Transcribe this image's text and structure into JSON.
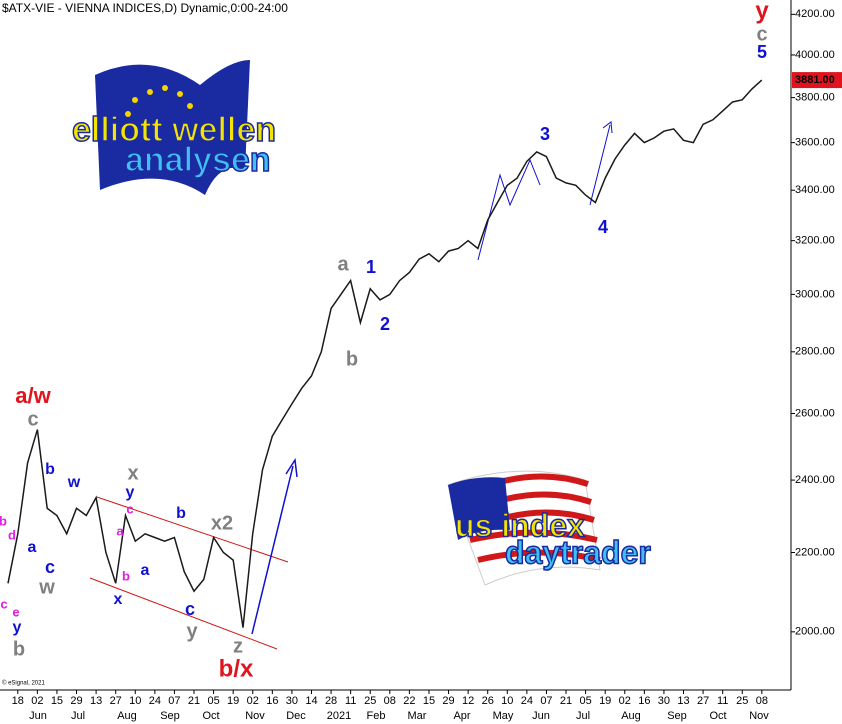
{
  "chart_data": {
    "type": "line",
    "title": "$ATX-VIE - VIENNA INDICES,D) Dynamic,0:00-24:00",
    "copyright": "© eSignal, 2021",
    "log_scale": true,
    "grid": false,
    "color": "#1a1a1a",
    "ylim": [
      1865,
      4273
    ],
    "yticks": [
      {
        "value": 2000,
        "label": "2000.00"
      },
      {
        "value": 2200,
        "label": "2200.00"
      },
      {
        "value": 2400,
        "label": "2400.00"
      },
      {
        "value": 2600,
        "label": "2600.00"
      },
      {
        "value": 2800,
        "label": "2800.00"
      },
      {
        "value": 3000,
        "label": "3000.00"
      },
      {
        "value": 3200,
        "label": "3200.00"
      },
      {
        "value": 3400,
        "label": "3400.00"
      },
      {
        "value": 3600,
        "label": "3600.00"
      },
      {
        "value": 3800,
        "label": "3800.00"
      },
      {
        "value": 4000,
        "label": "4000.00"
      },
      {
        "value": 4200,
        "label": "4200.00"
      }
    ],
    "last_value": {
      "value": 3881,
      "label": "3881.00"
    },
    "categories": [
      null,
      "18",
      null,
      "02",
      null,
      "15",
      null,
      "29",
      null,
      "13",
      null,
      "27",
      null,
      "10",
      null,
      "24",
      null,
      "07",
      null,
      "21",
      null,
      "05",
      null,
      "19",
      null,
      "02",
      null,
      "16",
      null,
      "30",
      null,
      "14",
      null,
      "28",
      null,
      "11",
      null,
      "25",
      null,
      "08",
      null,
      "22",
      null,
      "15",
      null,
      "29",
      null,
      "12",
      null,
      "26",
      null,
      "10",
      null,
      "24",
      null,
      "07",
      null,
      "21",
      null,
      "05",
      null,
      "19",
      null,
      "02",
      null,
      "16",
      null,
      "30",
      null,
      "13",
      null,
      "27",
      null,
      "11",
      null,
      "25",
      null,
      "08"
    ],
    "values": [
      2120,
      2250,
      2450,
      2550,
      2320,
      2300,
      2250,
      2320,
      2300,
      2350,
      2200,
      2120,
      2300,
      2230,
      2250,
      2240,
      2230,
      2240,
      2150,
      2100,
      2130,
      2240,
      2200,
      2180,
      2010,
      2250,
      2430,
      2530,
      2580,
      2630,
      2680,
      2720,
      2800,
      2950,
      3000,
      3050,
      2900,
      3020,
      2980,
      3000,
      3050,
      3080,
      3130,
      3150,
      3120,
      3160,
      3170,
      3200,
      3170,
      3280,
      3350,
      3420,
      3450,
      3520,
      3560,
      3540,
      3450,
      3430,
      3420,
      3380,
      3350,
      3450,
      3530,
      3590,
      3640,
      3600,
      3620,
      3650,
      3660,
      3610,
      3600,
      3680,
      3700,
      3740,
      3780,
      3790,
      3840,
      3881
    ],
    "months": [
      "Jun",
      "Jul",
      "Aug",
      "Sep",
      "Oct",
      "Nov",
      "Dec",
      "2021",
      "Feb",
      "Mar",
      "Apr",
      "May",
      "Jun",
      "Jul",
      "Aug",
      "Sep",
      "Oct",
      "Nov"
    ],
    "annotations": [
      {
        "text": "y",
        "color": "#e0141e"
      },
      {
        "text": "c",
        "color": "#808080"
      },
      {
        "text": "5",
        "color": "#1010d0"
      },
      {
        "text": "3",
        "color": "#1010d0"
      },
      {
        "text": "4",
        "color": "#1010d0"
      },
      {
        "text": "a",
        "color": "#808080"
      },
      {
        "text": "1",
        "color": "#1010d0"
      },
      {
        "text": "2",
        "color": "#1010d0"
      },
      {
        "text": "b",
        "color": "#808080"
      },
      {
        "text": "a/w",
        "color": "#e0141e"
      },
      {
        "text": "c",
        "color": "#808080"
      },
      {
        "text": "b",
        "color": "#1010d0"
      },
      {
        "text": "w",
        "color": "#1010d0"
      },
      {
        "text": "x",
        "color": "#808080"
      },
      {
        "text": "y",
        "color": "#1010d0"
      },
      {
        "text": "c",
        "color": "#e020e0"
      },
      {
        "text": "a",
        "color": "#e020e0"
      },
      {
        "text": "b",
        "color": "#e020e0"
      },
      {
        "text": "x",
        "color": "#1010d0"
      },
      {
        "text": "a",
        "color": "#1010d0"
      },
      {
        "text": "b",
        "color": "#1010d0"
      },
      {
        "text": "x2",
        "color": "#808080"
      },
      {
        "text": "c",
        "color": "#1010d0"
      },
      {
        "text": "y",
        "color": "#808080"
      },
      {
        "text": "z",
        "color": "#808080"
      },
      {
        "text": "b/x",
        "color": "#e0141e"
      },
      {
        "text": "c",
        "color": "#1010d0"
      },
      {
        "text": "w",
        "color": "#808080"
      },
      {
        "text": "a",
        "color": "#1010d0"
      },
      {
        "text": "b",
        "color": "#e020e0"
      },
      {
        "text": "d",
        "color": "#e020e0"
      },
      {
        "text": "c",
        "color": "#e020e0"
      },
      {
        "text": "e",
        "color": "#e020e0"
      },
      {
        "text": "y",
        "color": "#1010d0"
      },
      {
        "text": "b",
        "color": "#808080"
      }
    ],
    "logos": [
      "elliott wellen",
      "analysen",
      "us index",
      "daytrader"
    ]
  }
}
